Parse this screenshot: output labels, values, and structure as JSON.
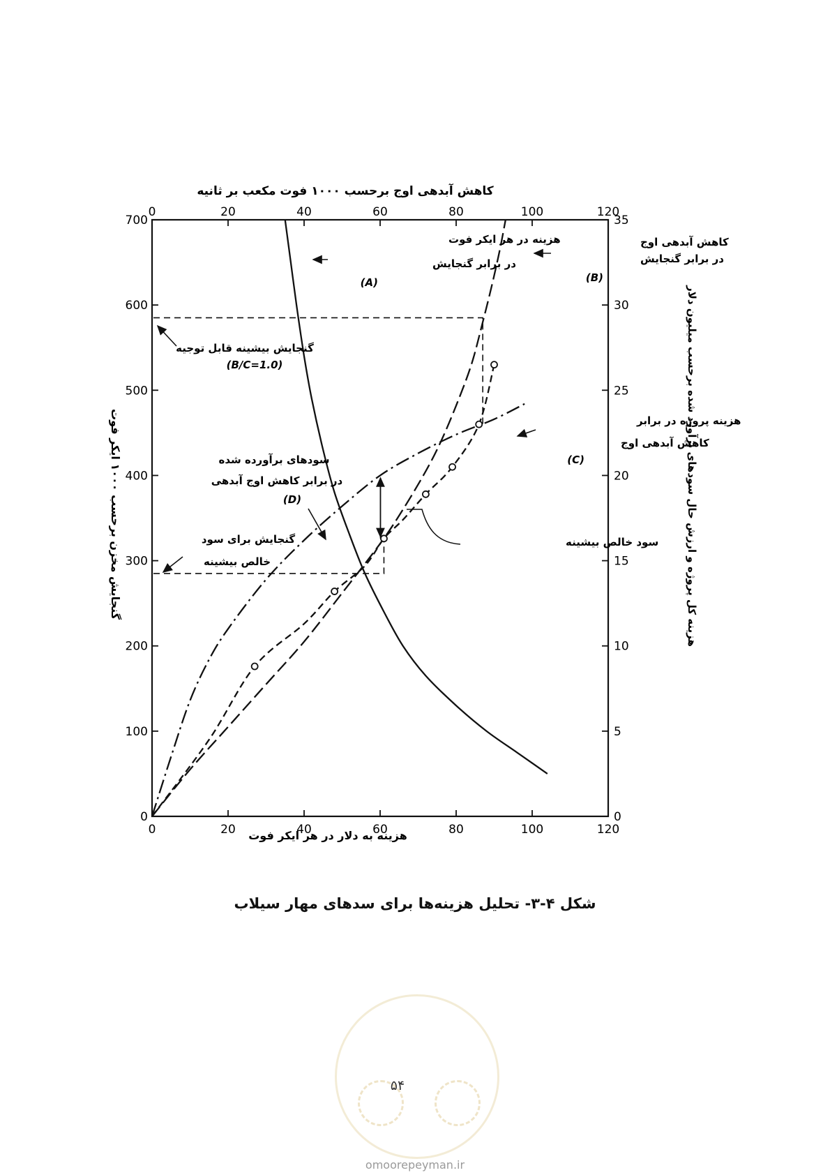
{
  "chart_data": {
    "type": "line",
    "title": "کاهش آبدهی اوج برحسب ۱۰۰۰ فوت مکعب بر ثانیه",
    "xlabel": "هزینه به دلار در هر ایکر فوت",
    "ylabel_left": "گنجایش مخزن برحسب ۱۰۰۰ ایکر فوت",
    "ylabel_right": "هزینه کل پروژه و ارزش حال سودهای برآورد شده برحسب میلیون دلار",
    "x_bottom": {
      "range": [
        0,
        120
      ],
      "ticks": [
        "0",
        "20",
        "40",
        "60",
        "80",
        "100",
        "120"
      ]
    },
    "x_top": {
      "range": [
        0,
        120
      ],
      "ticks": [
        "0",
        "20",
        "40",
        "60",
        "80",
        "100",
        "120"
      ]
    },
    "y_left": {
      "range": [
        0,
        700
      ],
      "ticks": [
        "0",
        "100",
        "200",
        "300",
        "400",
        "500",
        "600",
        "700"
      ]
    },
    "y_right": {
      "range": [
        0,
        35
      ],
      "ticks": [
        "0",
        "5",
        "10",
        "15",
        "20",
        "25",
        "30",
        "35"
      ]
    },
    "series": [
      {
        "id": "A",
        "name": "هزینه در هر ایکر فوت در برابر گنجایش",
        "tag": "(A)",
        "style": "solid",
        "axes": "bottom-left",
        "x": [
          35,
          36.5,
          38,
          40,
          42,
          45,
          48,
          52,
          56,
          61,
          66,
          72,
          80,
          88,
          96,
          104
        ],
        "y": [
          700,
          650,
          600,
          540,
          490,
          430,
          380,
          330,
          285,
          240,
          200,
          165,
          130,
          100,
          75,
          50
        ]
      },
      {
        "id": "B",
        "name": "کاهش آبدهی اوج در برابر گنجایش",
        "tag": "(B)",
        "style": "long-dash",
        "axes": "top-left",
        "x": [
          0,
          10,
          20,
          30,
          40,
          50,
          60,
          66,
          72,
          76,
          80,
          84,
          87,
          89.5,
          91.5,
          93
        ],
        "y": [
          0,
          55,
          105,
          155,
          205,
          262,
          320,
          360,
          405,
          440,
          482,
          530,
          580,
          625,
          665,
          700
        ]
      },
      {
        "id": "C",
        "name": "هزینه پروژه در برابر کاهش آبدهی اوج",
        "tag": "(C)",
        "style": "dashed-circles",
        "axes": "top-right",
        "x": [
          0,
          15,
          27,
          40,
          48,
          56,
          61,
          66,
          72,
          79,
          86,
          90
        ],
        "y": [
          0,
          4.5,
          8.8,
          11.3,
          13.2,
          14.7,
          16.3,
          17.4,
          18.9,
          20.5,
          23,
          26.5
        ],
        "markers": [
          [
            27,
            8.8
          ],
          [
            48,
            13.2
          ],
          [
            61,
            16.3
          ],
          [
            72,
            18.9
          ],
          [
            79,
            20.5
          ],
          [
            86,
            23
          ],
          [
            90,
            26.5
          ]
        ]
      },
      {
        "id": "D",
        "name": "سودهای برآورده شده در برابر کاهش آبدهی اوج",
        "tag": "(D)",
        "style": "dash-dot",
        "axes": "top-right",
        "x": [
          0,
          5,
          10,
          15,
          20,
          30,
          40,
          50,
          60,
          70,
          80,
          90,
          98
        ],
        "y": [
          0,
          3.5,
          6.8,
          9.2,
          11,
          13.9,
          16.2,
          18.2,
          20,
          21.3,
          22.4,
          23.3,
          24.2
        ]
      }
    ],
    "guides": {
      "max_justifiable": {
        "capacity": 585,
        "x_top": 87
      },
      "max_net_benefit": {
        "capacity": 285,
        "x_top": 61,
        "benefit_top": 20.1
      }
    },
    "annotations": {
      "a_line1": "هزینه در هر ایکر فوت",
      "a_line2": "در برابر گنجایش",
      "a_tag": "(A)",
      "b_line1": "کاهش آبدهی اوج",
      "b_line2": "در برابر گنجایش",
      "b_tag": "(B)",
      "maxcap_line1": "گنجایش بیشینه قابل توجیه",
      "maxcap_line2": "(B/C=1.0)",
      "c_line1": "هزینه پروژه در برابر",
      "c_line2": "کاهش آبدهی اوج",
      "c_tag": "(C)",
      "d_line1": "سودهای برآورده شده",
      "d_line2": "در برابر کاهش اوج آبدهی",
      "d_tag": "(D)",
      "netben": "سود خالص بیشینه",
      "cap_net_line1": "گنجایش برای سود",
      "cap_net_line2": "خالص بیشینه"
    }
  },
  "caption": "شکل ۴-۳- تحلیل هزینه‌ها برای سدهای مهار سیلاب",
  "page_number": "۵۴",
  "watermark": {
    "site": "omoorepeyman.ir"
  }
}
